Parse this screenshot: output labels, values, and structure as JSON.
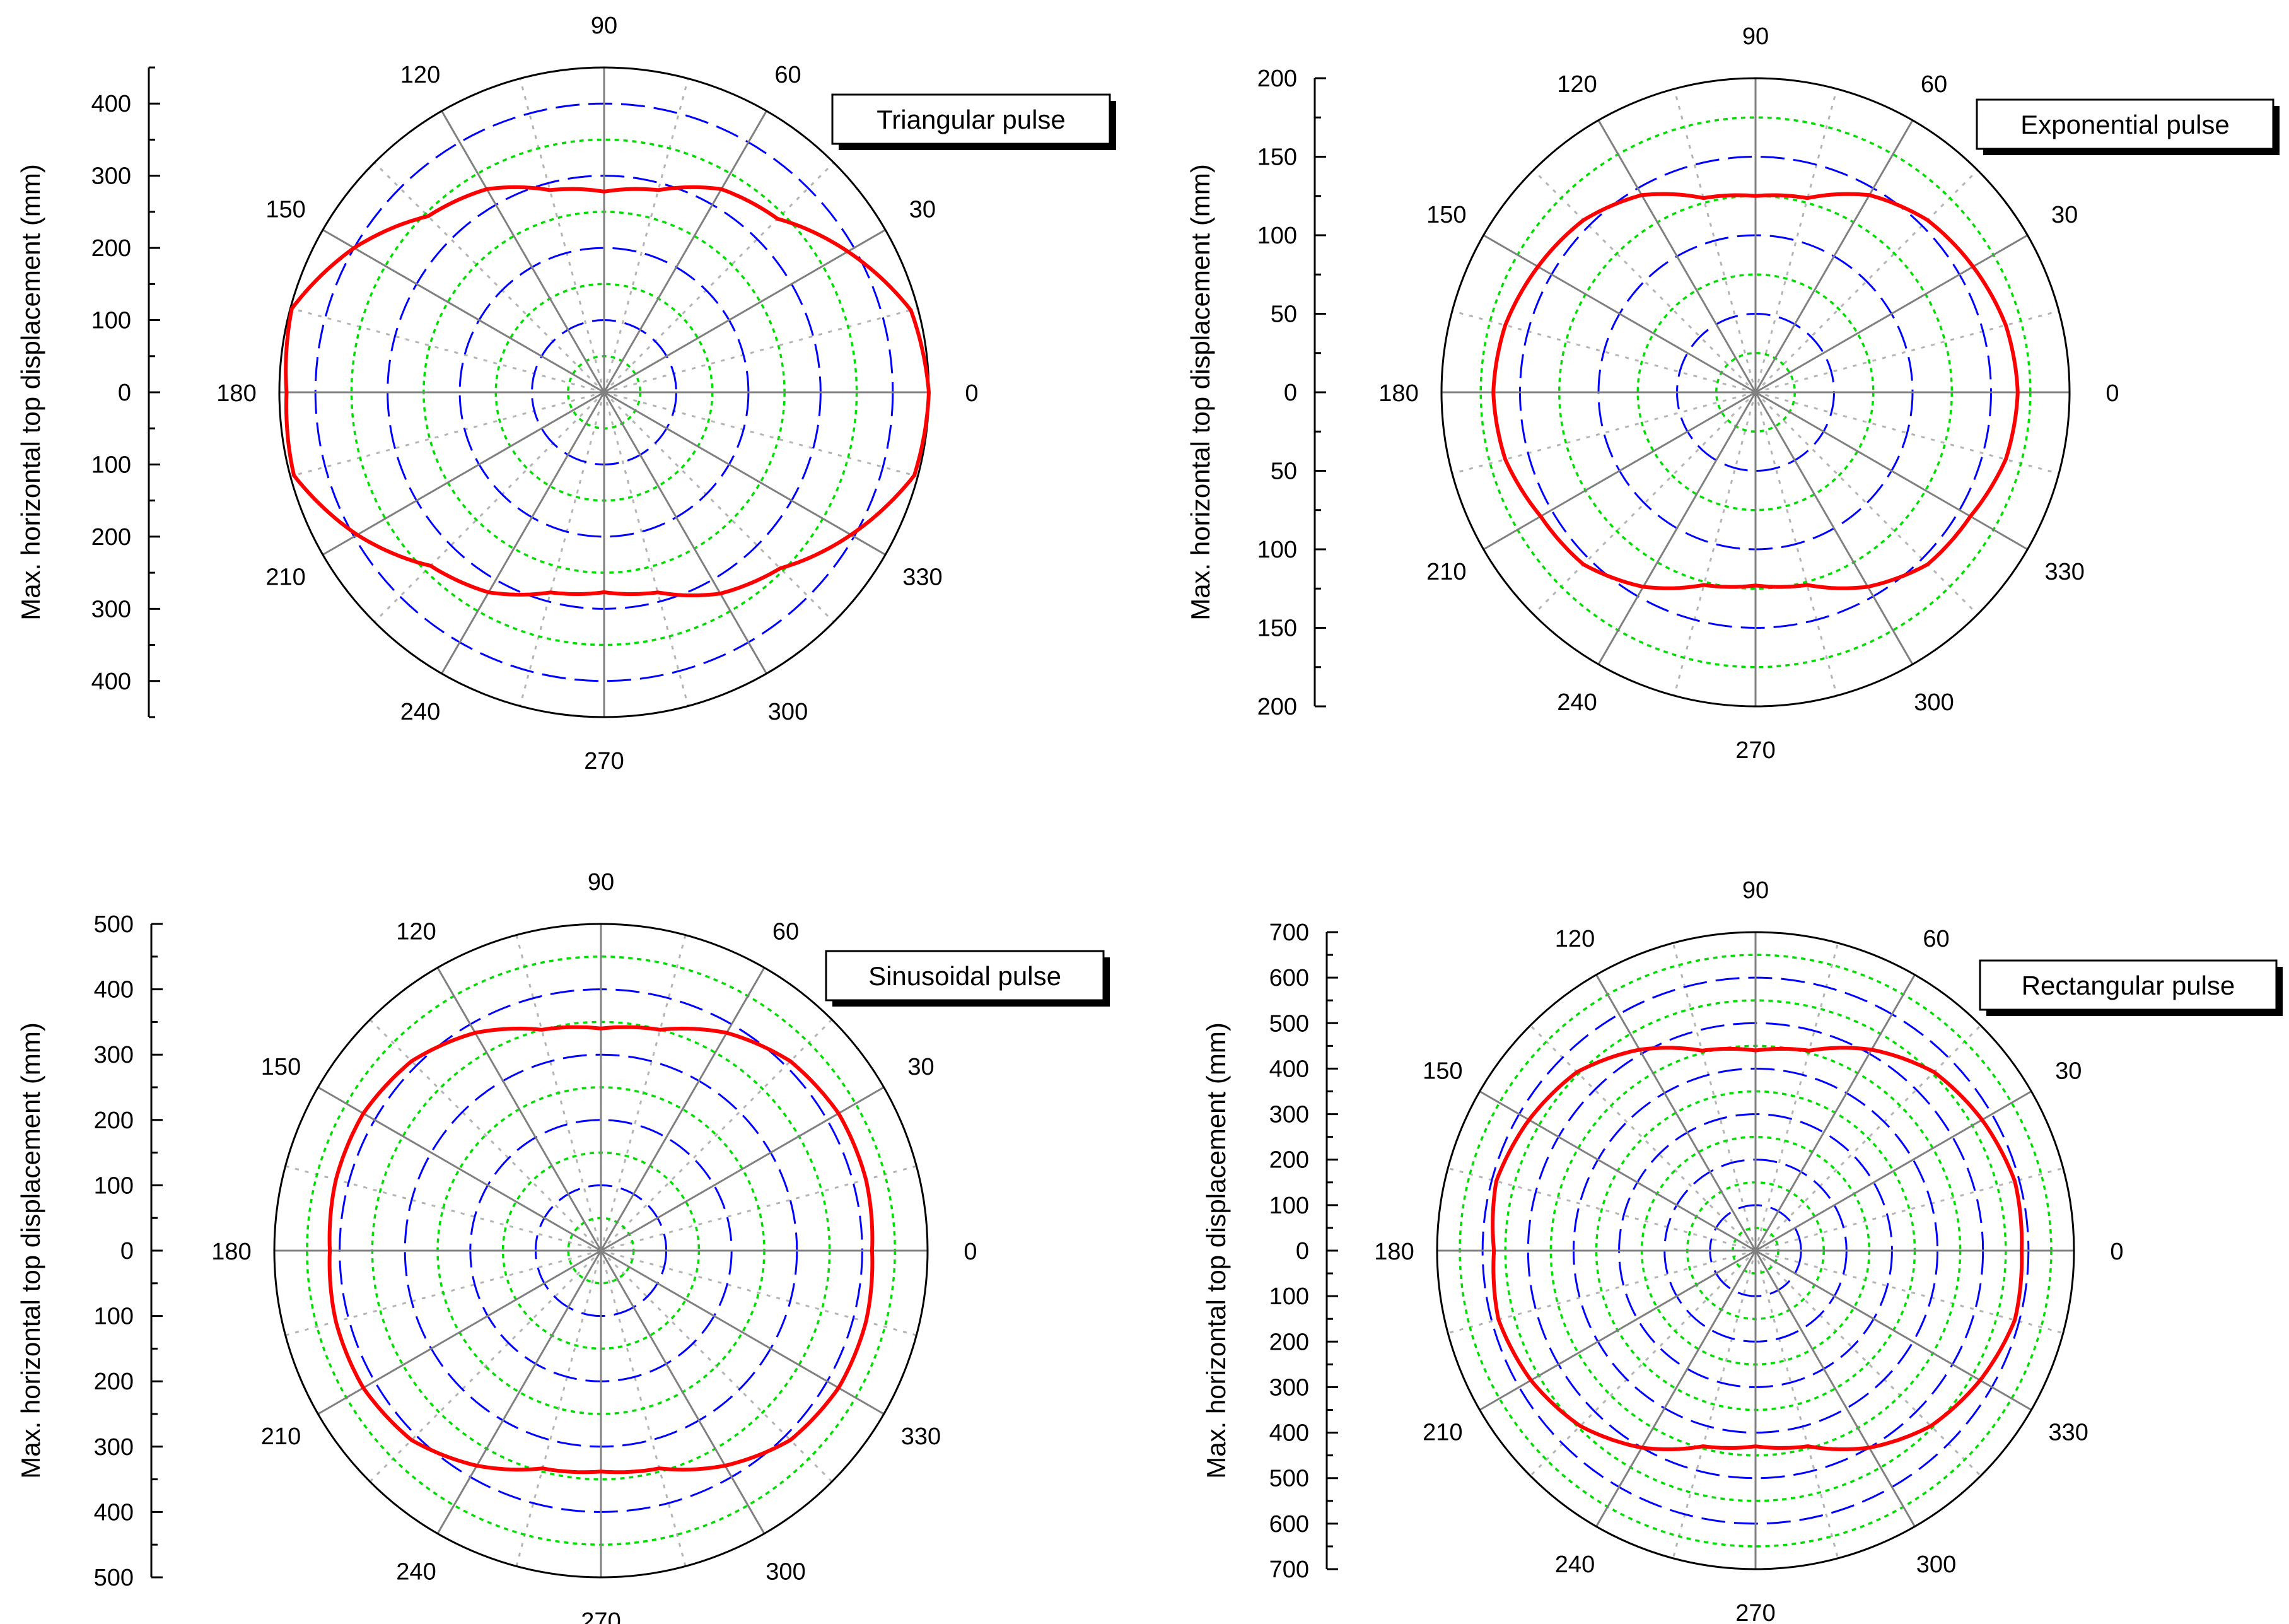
{
  "chart_data": [
    {
      "type": "polar",
      "title": "Triangular pulse",
      "ylabel": "Max. horizontal top displacement (mm)",
      "radial_ticks": [
        0,
        100,
        200,
        300,
        400
      ],
      "radial_max": 450,
      "ring_step": 50,
      "angle_ticks": [
        0,
        30,
        60,
        90,
        120,
        150,
        180,
        210,
        240,
        270,
        300,
        330
      ],
      "series": {
        "name": "Triangular pulse",
        "color": "#ff0000",
        "angles": [
          0,
          15,
          30,
          45,
          60,
          75,
          90,
          105,
          120,
          135,
          150,
          165,
          180,
          195,
          210,
          225,
          240,
          255,
          270,
          285,
          300,
          315,
          330,
          345,
          360
        ],
        "values": [
          450,
          440,
          390,
          340,
          325,
          290,
          278,
          290,
          325,
          345,
          400,
          448,
          440,
          445,
          395,
          340,
          320,
          287,
          277,
          287,
          322,
          345,
          395,
          445,
          450
        ]
      }
    },
    {
      "type": "polar",
      "title": "Exponential pulse",
      "ylabel": "Max. horizontal top displacement (mm)",
      "radial_ticks": [
        0,
        50,
        100,
        150,
        200
      ],
      "radial_max": 200,
      "ring_step": 25,
      "angle_ticks": [
        0,
        30,
        60,
        90,
        120,
        150,
        180,
        210,
        240,
        270,
        300,
        330
      ],
      "series": {
        "name": "Exponential pulse",
        "color": "#ff0000",
        "angles": [
          0,
          15,
          30,
          45,
          60,
          75,
          90,
          105,
          120,
          135,
          150,
          165,
          180,
          195,
          210,
          225,
          240,
          255,
          270,
          285,
          300,
          315,
          330,
          345,
          360
        ],
        "values": [
          167,
          165,
          160,
          155,
          145,
          128,
          125,
          128,
          145,
          155,
          160,
          165,
          167,
          165,
          158,
          155,
          143,
          127,
          123,
          127,
          143,
          155,
          158,
          165,
          167
        ]
      }
    },
    {
      "type": "polar",
      "title": "Sinusoidal pulse",
      "ylabel": "Max. horizontal top displacement (mm)",
      "radial_ticks": [
        0,
        100,
        200,
        300,
        400,
        500
      ],
      "radial_max": 500,
      "ring_step": 50,
      "angle_ticks": [
        0,
        30,
        60,
        90,
        120,
        150,
        180,
        210,
        240,
        270,
        300,
        330
      ],
      "series": {
        "name": "Sinusoidal pulse",
        "color": "#ff0000",
        "angles": [
          0,
          15,
          30,
          45,
          60,
          75,
          90,
          105,
          120,
          135,
          150,
          165,
          180,
          195,
          210,
          225,
          240,
          255,
          270,
          285,
          300,
          315,
          330,
          345,
          360
        ],
        "values": [
          415,
          420,
          420,
          410,
          385,
          350,
          340,
          350,
          385,
          410,
          420,
          420,
          415,
          420,
          420,
          410,
          380,
          345,
          338,
          345,
          380,
          410,
          420,
          420,
          415
        ]
      }
    },
    {
      "type": "polar",
      "title": "Rectangular pulse",
      "ylabel": "Max. horizontal top displacement (mm)",
      "radial_ticks": [
        0,
        100,
        200,
        300,
        400,
        500,
        600,
        700
      ],
      "radial_max": 700,
      "ring_step": 50,
      "angle_ticks": [
        0,
        30,
        60,
        90,
        120,
        150,
        180,
        210,
        240,
        270,
        300,
        330
      ],
      "series": {
        "name": "Rectangular pulse",
        "color": "#ff0000",
        "angles": [
          0,
          15,
          30,
          45,
          60,
          75,
          90,
          105,
          120,
          135,
          150,
          165,
          180,
          195,
          210,
          225,
          240,
          255,
          270,
          285,
          300,
          315,
          330,
          345,
          360
        ],
        "values": [
          585,
          590,
          575,
          555,
          510,
          455,
          440,
          455,
          510,
          555,
          575,
          590,
          575,
          585,
          570,
          545,
          500,
          445,
          430,
          445,
          500,
          545,
          570,
          590,
          585
        ]
      }
    }
  ],
  "colors": {
    "series": "#ff0000",
    "ring_major": "#0000ff",
    "ring_minor": "#00dd00",
    "spoke": "#808080",
    "spoke_minor": "#b4b4b4"
  }
}
